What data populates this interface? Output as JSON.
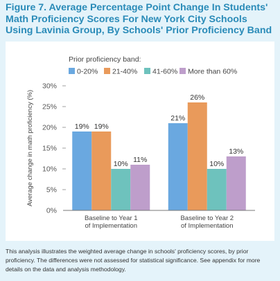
{
  "figure_title": "Figure 7. Average Percentage Point Change In Students' Math Proficiency Scores For New York City Schools Using Lavinia Group, By Schools' Prior Proficiency Band",
  "caption": "This analysis illustrates the weighted average change in schools' proficiency scores, by prior proficiency. The differences were not assessed for statistical significance. See appendix for more details on the data and analysis methodology.",
  "colors": {
    "title": "#2a8bb8",
    "background": "#e4f3fa",
    "series": [
      "#6aa8e0",
      "#e99a5b",
      "#6ec2bd",
      "#be9ecb"
    ]
  },
  "chart_data": {
    "type": "bar",
    "title": "",
    "legend_title": "Prior proficiency band:",
    "legend_position": "top",
    "ylabel": "Average change in math proficiency (%)",
    "xlabel": "",
    "ylim": [
      0,
      30
    ],
    "yticks": [
      0,
      5,
      10,
      15,
      20,
      25,
      30
    ],
    "ytick_labels": [
      "0%",
      "5%",
      "10%",
      "15%",
      "20%",
      "25%",
      "30%"
    ],
    "grid": false,
    "categories": [
      [
        "Baseline to Year 1",
        "of Implementation"
      ],
      [
        "Baseline to Year 2",
        "of Implementation"
      ]
    ],
    "series": [
      {
        "name": "0-20%",
        "values": [
          19,
          21
        ],
        "labels": [
          "19%",
          "21%"
        ]
      },
      {
        "name": "21-40%",
        "values": [
          19,
          26
        ],
        "labels": [
          "19%",
          "26%"
        ]
      },
      {
        "name": "41-60%",
        "values": [
          10,
          10
        ],
        "labels": [
          "10%",
          "10%"
        ]
      },
      {
        "name": "More than 60%",
        "values": [
          11,
          13
        ],
        "labels": [
          "11%",
          "13%"
        ]
      }
    ]
  }
}
